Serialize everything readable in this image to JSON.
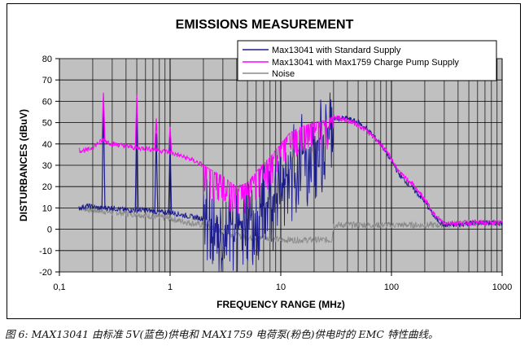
{
  "chart_data": {
    "type": "line",
    "title": "EMISSIONS MEASUREMENT",
    "xlabel": "FREQUENCY RANGE (MHz)",
    "ylabel": "DISTURBANCES (dBuV)",
    "x_scale": "log",
    "xlim": [
      0.1,
      1000
    ],
    "ylim": [
      -20,
      80
    ],
    "x_ticks": [
      0.1,
      1,
      10,
      100,
      1000
    ],
    "x_tick_labels": [
      "0,1",
      "1",
      "10",
      "100",
      "1000"
    ],
    "y_ticks": [
      -20,
      -10,
      0,
      10,
      20,
      30,
      40,
      50,
      60,
      70,
      80
    ],
    "y_tick_labels": [
      "-20",
      "-10",
      "0",
      "10",
      "20",
      "30",
      "40",
      "50",
      "60",
      "70",
      "80"
    ],
    "grid": true,
    "legend_position": "top-right",
    "series": [
      {
        "name": "Max13041 with Standard Supply",
        "color": "#1c1c8c",
        "x": [
          0.15,
          0.18,
          0.22,
          0.3,
          0.4,
          0.6,
          0.8,
          1,
          1.5,
          2,
          2.5,
          3,
          3.5,
          4,
          5,
          6,
          8,
          10,
          12,
          15,
          18,
          20,
          25,
          30,
          40,
          50,
          60,
          80,
          100,
          120,
          150,
          200,
          250,
          300,
          400,
          500,
          700,
          1000
        ],
        "y": [
          10,
          11,
          10,
          10,
          9,
          9,
          8,
          8,
          6,
          5,
          3,
          2,
          2,
          3,
          5,
          8,
          14,
          20,
          28,
          34,
          38,
          40,
          45,
          52,
          52,
          50,
          47,
          40,
          32,
          25,
          20,
          13,
          5,
          2,
          2,
          3,
          3,
          3
        ],
        "spikes": [
          [
            0.25,
            62
          ],
          [
            0.5,
            58
          ],
          [
            0.75,
            45
          ],
          [
            1.0,
            42
          ]
        ]
      },
      {
        "name": "Max13041 with Max1759 Charge Pump Supply",
        "color": "#ff00ff",
        "x": [
          0.15,
          0.18,
          0.22,
          0.25,
          0.3,
          0.4,
          0.5,
          0.6,
          0.8,
          1,
          1.5,
          2,
          2.5,
          3,
          3.5,
          4,
          5,
          6,
          8,
          10,
          12,
          15,
          20,
          25,
          30,
          40,
          50,
          60,
          80,
          100,
          120,
          150,
          200,
          250,
          300,
          400,
          500,
          700,
          1000
        ],
        "y": [
          37,
          37,
          40,
          42,
          40,
          39,
          38,
          38,
          37,
          36,
          33,
          30,
          27,
          25,
          22,
          20,
          22,
          27,
          34,
          40,
          45,
          48,
          50,
          51,
          53,
          51,
          49,
          46,
          40,
          33,
          26,
          22,
          14,
          6,
          3,
          3,
          3,
          3,
          3
        ],
        "spikes": [
          [
            0.25,
            64
          ],
          [
            0.5,
            63
          ],
          [
            0.75,
            52
          ],
          [
            1.0,
            48
          ]
        ]
      },
      {
        "name": "Noise",
        "color": "#8a8a8a",
        "x": [
          0.15,
          0.2,
          0.3,
          0.5,
          0.7,
          1,
          1.5,
          2,
          3,
          4,
          5,
          7,
          10,
          15,
          20,
          29,
          30,
          50,
          100,
          200,
          300,
          500,
          1000
        ],
        "y": [
          10,
          9,
          8,
          7,
          6,
          5,
          3,
          2,
          -1,
          -3,
          -4,
          -4,
          -5,
          -5,
          -5,
          -5,
          2,
          2,
          2,
          2,
          2,
          3,
          3
        ]
      }
    ]
  },
  "caption": "图 6: MAX13041 由标准 5V(蓝色)供电和 MAX1759 电荷泵(粉色)供电时的 EMC 特性曲线。"
}
